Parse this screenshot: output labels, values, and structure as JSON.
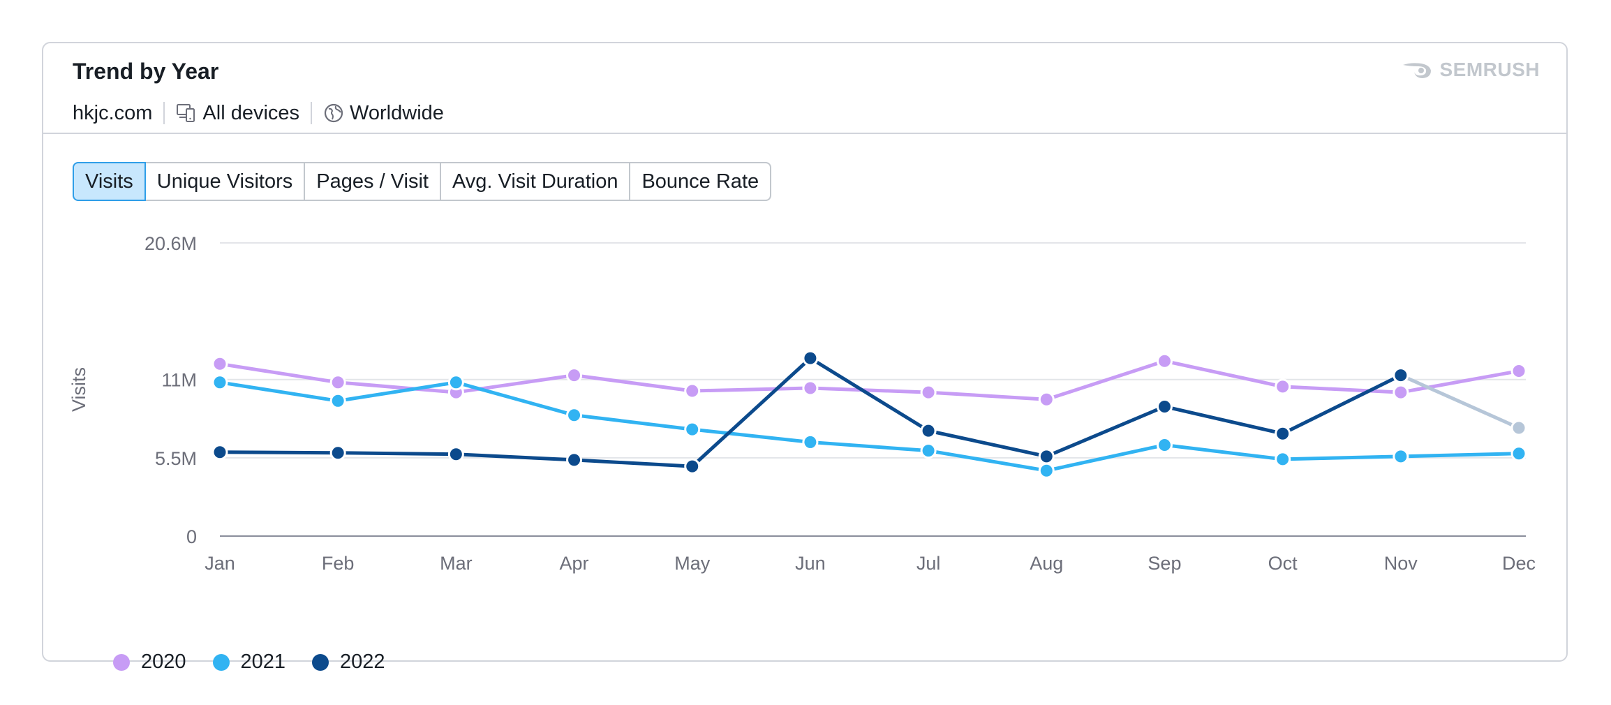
{
  "header": {
    "title": "Trend by Year",
    "domain": "hkjc.com",
    "devices": "All devices",
    "region": "Worldwide",
    "brand": "SEMRUSH"
  },
  "tabs": [
    {
      "label": "Visits",
      "active": true
    },
    {
      "label": "Unique Visitors",
      "active": false
    },
    {
      "label": "Pages / Visit",
      "active": false
    },
    {
      "label": "Avg. Visit Duration",
      "active": false
    },
    {
      "label": "Bounce Rate",
      "active": false
    }
  ],
  "colors": {
    "2020": "#c79cf5",
    "2021": "#31b3f2",
    "2022": "#0c4a8c",
    "projection": "#b6c6d8",
    "accent": "#2f9ee8"
  },
  "chart_data": {
    "type": "line",
    "ylabel": "Visits",
    "xlabel": "",
    "categories": [
      "Jan",
      "Feb",
      "Mar",
      "Apr",
      "May",
      "Jun",
      "Jul",
      "Aug",
      "Sep",
      "Oct",
      "Nov",
      "Dec"
    ],
    "ylim": [
      0,
      20.6
    ],
    "y_unit": "M",
    "y_ticks": [
      {
        "value": 0,
        "label": "0"
      },
      {
        "value": 5.5,
        "label": "5.5M"
      },
      {
        "value": 11,
        "label": "11M"
      },
      {
        "value": 20.6,
        "label": "20.6M"
      }
    ],
    "grid": true,
    "legend_position": "bottom-left",
    "series": [
      {
        "name": "2020",
        "values": [
          12.1,
          10.8,
          10.1,
          11.3,
          10.2,
          10.4,
          10.1,
          9.6,
          12.3,
          10.5,
          10.1,
          11.6
        ]
      },
      {
        "name": "2021",
        "values": [
          10.8,
          9.5,
          10.8,
          8.5,
          7.5,
          6.6,
          6.0,
          4.6,
          6.4,
          5.4,
          5.6,
          5.8
        ]
      },
      {
        "name": "2022",
        "values": [
          5.9,
          5.85,
          5.75,
          5.35,
          4.9,
          12.5,
          7.4,
          5.6,
          9.1,
          7.2,
          11.3,
          7.6
        ]
      }
    ],
    "projection_last_point_series": "2022"
  }
}
